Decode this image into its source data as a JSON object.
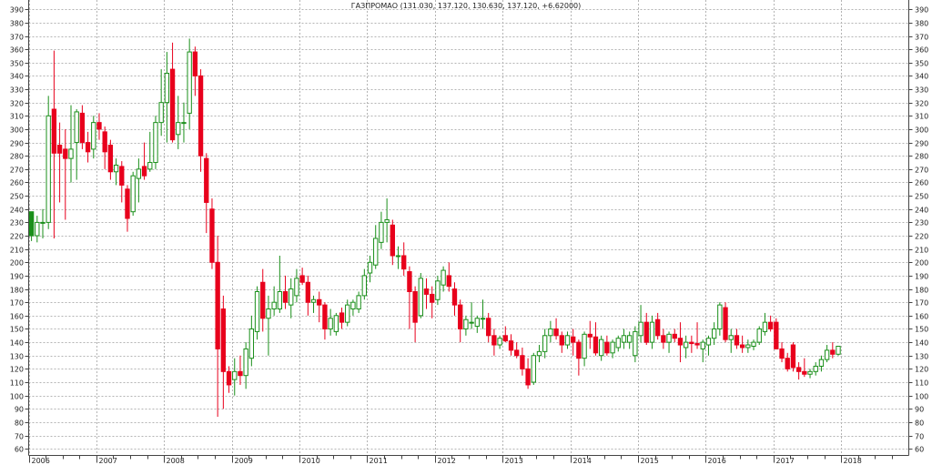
{
  "chart_data": {
    "type": "candlestick",
    "title": "ГАЗПРОМАО (131.030, 137.120, 130.630, 137.120, +6.62000)",
    "ylim": [
      55,
      397
    ],
    "xlim": [
      "2006-01",
      "2018-12"
    ],
    "yticks": [
      60,
      70,
      80,
      90,
      100,
      110,
      120,
      130,
      140,
      150,
      160,
      170,
      180,
      190,
      200,
      210,
      220,
      230,
      240,
      250,
      260,
      270,
      280,
      290,
      300,
      310,
      320,
      330,
      340,
      350,
      360,
      370,
      380,
      390
    ],
    "xticks": [
      "2006",
      "2007",
      "2008",
      "2009",
      "2010",
      "2011",
      "2012",
      "2013",
      "2014",
      "2015",
      "2016",
      "2017",
      "2018"
    ],
    "grid": true,
    "colors": {
      "up": "#1a8f1a",
      "down": "#e8001c",
      "grid": "#b4b4b4",
      "frame": "#444444"
    },
    "series": [
      {
        "t": "2006-01",
        "o": 220,
        "h": 238,
        "l": 216,
        "c": 238,
        "f": true
      },
      {
        "t": "2006-02",
        "o": 220,
        "h": 235,
        "l": 215,
        "c": 230
      },
      {
        "t": "2006-03",
        "o": 230,
        "h": 240,
        "l": 218,
        "c": 230
      },
      {
        "t": "2006-04",
        "o": 230,
        "h": 325,
        "l": 225,
        "c": 310
      },
      {
        "t": "2006-05",
        "o": 315,
        "h": 359,
        "l": 218,
        "c": 282
      },
      {
        "t": "2006-06",
        "o": 288,
        "h": 305,
        "l": 245,
        "c": 282
      },
      {
        "t": "2006-07",
        "o": 285,
        "h": 300,
        "l": 232,
        "c": 278
      },
      {
        "t": "2006-08",
        "o": 278,
        "h": 318,
        "l": 260,
        "c": 285
      },
      {
        "t": "2006-09",
        "o": 290,
        "h": 315,
        "l": 262,
        "c": 313
      },
      {
        "t": "2006-10",
        "o": 312,
        "h": 318,
        "l": 285,
        "c": 290
      },
      {
        "t": "2006-11",
        "o": 290,
        "h": 298,
        "l": 275,
        "c": 283
      },
      {
        "t": "2006-12",
        "o": 285,
        "h": 310,
        "l": 278,
        "c": 305
      },
      {
        "t": "2007-01",
        "o": 305,
        "h": 312,
        "l": 292,
        "c": 300
      },
      {
        "t": "2007-02",
        "o": 298,
        "h": 302,
        "l": 270,
        "c": 283
      },
      {
        "t": "2007-03",
        "o": 288,
        "h": 292,
        "l": 262,
        "c": 268
      },
      {
        "t": "2007-04",
        "o": 268,
        "h": 278,
        "l": 258,
        "c": 273
      },
      {
        "t": "2007-05",
        "o": 272,
        "h": 276,
        "l": 245,
        "c": 258
      },
      {
        "t": "2007-06",
        "o": 255,
        "h": 258,
        "l": 223,
        "c": 233
      },
      {
        "t": "2007-07",
        "o": 238,
        "h": 268,
        "l": 235,
        "c": 265
      },
      {
        "t": "2007-08",
        "o": 263,
        "h": 278,
        "l": 245,
        "c": 270
      },
      {
        "t": "2007-09",
        "o": 272,
        "h": 290,
        "l": 262,
        "c": 265
      },
      {
        "t": "2007-10",
        "o": 270,
        "h": 298,
        "l": 268,
        "c": 275
      },
      {
        "t": "2007-11",
        "o": 275,
        "h": 310,
        "l": 270,
        "c": 305
      },
      {
        "t": "2007-12",
        "o": 305,
        "h": 345,
        "l": 295,
        "c": 320
      },
      {
        "t": "2008-01",
        "o": 320,
        "h": 358,
        "l": 290,
        "c": 342
      },
      {
        "t": "2008-02",
        "o": 345,
        "h": 365,
        "l": 290,
        "c": 292
      },
      {
        "t": "2008-03",
        "o": 296,
        "h": 325,
        "l": 285,
        "c": 305
      },
      {
        "t": "2008-04",
        "o": 305,
        "h": 320,
        "l": 290,
        "c": 305
      },
      {
        "t": "2008-05",
        "o": 312,
        "h": 368,
        "l": 300,
        "c": 358
      },
      {
        "t": "2008-06",
        "o": 358,
        "h": 362,
        "l": 325,
        "c": 340
      },
      {
        "t": "2008-07",
        "o": 340,
        "h": 345,
        "l": 268,
        "c": 280
      },
      {
        "t": "2008-08",
        "o": 278,
        "h": 282,
        "l": 222,
        "c": 245
      },
      {
        "t": "2008-09",
        "o": 240,
        "h": 248,
        "l": 195,
        "c": 200
      },
      {
        "t": "2008-10",
        "o": 200,
        "h": 220,
        "l": 84,
        "c": 135
      },
      {
        "t": "2008-11",
        "o": 165,
        "h": 175,
        "l": 90,
        "c": 118
      },
      {
        "t": "2008-12",
        "o": 118,
        "h": 122,
        "l": 102,
        "c": 108
      },
      {
        "t": "2009-01",
        "o": 112,
        "h": 128,
        "l": 100,
        "c": 118
      },
      {
        "t": "2009-02",
        "o": 118,
        "h": 130,
        "l": 108,
        "c": 115
      },
      {
        "t": "2009-03",
        "o": 115,
        "h": 140,
        "l": 105,
        "c": 135
      },
      {
        "t": "2009-04",
        "o": 128,
        "h": 160,
        "l": 122,
        "c": 150
      },
      {
        "t": "2009-05",
        "o": 148,
        "h": 182,
        "l": 142,
        "c": 178
      },
      {
        "t": "2009-06",
        "o": 185,
        "h": 195,
        "l": 148,
        "c": 158
      },
      {
        "t": "2009-07",
        "o": 158,
        "h": 175,
        "l": 130,
        "c": 165
      },
      {
        "t": "2009-08",
        "o": 165,
        "h": 182,
        "l": 160,
        "c": 170
      },
      {
        "t": "2009-09",
        "o": 165,
        "h": 205,
        "l": 162,
        "c": 178
      },
      {
        "t": "2009-10",
        "o": 178,
        "h": 190,
        "l": 165,
        "c": 170
      },
      {
        "t": "2009-11",
        "o": 168,
        "h": 188,
        "l": 158,
        "c": 180
      },
      {
        "t": "2009-12",
        "o": 175,
        "h": 195,
        "l": 170,
        "c": 188
      },
      {
        "t": "2010-01",
        "o": 190,
        "h": 196,
        "l": 183,
        "c": 185,
        "f": true
      },
      {
        "t": "2010-02",
        "o": 185,
        "h": 190,
        "l": 160,
        "c": 170
      },
      {
        "t": "2010-03",
        "o": 170,
        "h": 175,
        "l": 162,
        "c": 172
      },
      {
        "t": "2010-04",
        "o": 172,
        "h": 178,
        "l": 155,
        "c": 168
      },
      {
        "t": "2010-05",
        "o": 168,
        "h": 170,
        "l": 142,
        "c": 150
      },
      {
        "t": "2010-06",
        "o": 150,
        "h": 165,
        "l": 145,
        "c": 158
      },
      {
        "t": "2010-07",
        "o": 148,
        "h": 162,
        "l": 145,
        "c": 160
      },
      {
        "t": "2010-08",
        "o": 162,
        "h": 166,
        "l": 150,
        "c": 155
      },
      {
        "t": "2010-09",
        "o": 155,
        "h": 172,
        "l": 152,
        "c": 168
      },
      {
        "t": "2010-10",
        "o": 165,
        "h": 172,
        "l": 160,
        "c": 170
      },
      {
        "t": "2010-11",
        "o": 165,
        "h": 178,
        "l": 162,
        "c": 175
      },
      {
        "t": "2010-12",
        "o": 175,
        "h": 195,
        "l": 172,
        "c": 190
      },
      {
        "t": "2011-01",
        "o": 192,
        "h": 205,
        "l": 185,
        "c": 200
      },
      {
        "t": "2011-02",
        "o": 198,
        "h": 228,
        "l": 195,
        "c": 218
      },
      {
        "t": "2011-03",
        "o": 215,
        "h": 238,
        "l": 210,
        "c": 230
      },
      {
        "t": "2011-04",
        "o": 230,
        "h": 248,
        "l": 215,
        "c": 232
      },
      {
        "t": "2011-05",
        "o": 228,
        "h": 232,
        "l": 198,
        "c": 205
      },
      {
        "t": "2011-06",
        "o": 205,
        "h": 212,
        "l": 195,
        "c": 205
      },
      {
        "t": "2011-07",
        "o": 205,
        "h": 215,
        "l": 190,
        "c": 195
      },
      {
        "t": "2011-08",
        "o": 193,
        "h": 197,
        "l": 150,
        "c": 178
      },
      {
        "t": "2011-09",
        "o": 178,
        "h": 182,
        "l": 140,
        "c": 155
      },
      {
        "t": "2011-10",
        "o": 160,
        "h": 192,
        "l": 158,
        "c": 188
      },
      {
        "t": "2011-11",
        "o": 180,
        "h": 188,
        "l": 165,
        "c": 176
      },
      {
        "t": "2011-12",
        "o": 176,
        "h": 182,
        "l": 158,
        "c": 170
      },
      {
        "t": "2012-01",
        "o": 172,
        "h": 190,
        "l": 168,
        "c": 186
      },
      {
        "t": "2012-02",
        "o": 183,
        "h": 197,
        "l": 178,
        "c": 194
      },
      {
        "t": "2012-03",
        "o": 190,
        "h": 200,
        "l": 178,
        "c": 182
      },
      {
        "t": "2012-04",
        "o": 180,
        "h": 185,
        "l": 160,
        "c": 168
      },
      {
        "t": "2012-05",
        "o": 168,
        "h": 172,
        "l": 140,
        "c": 150
      },
      {
        "t": "2012-06",
        "o": 150,
        "h": 160,
        "l": 145,
        "c": 157
      },
      {
        "t": "2012-07",
        "o": 155,
        "h": 170,
        "l": 150,
        "c": 155
      },
      {
        "t": "2012-08",
        "o": 152,
        "h": 160,
        "l": 147,
        "c": 158
      },
      {
        "t": "2012-09",
        "o": 158,
        "h": 172,
        "l": 150,
        "c": 158
      },
      {
        "t": "2012-10",
        "o": 158,
        "h": 162,
        "l": 140,
        "c": 145
      },
      {
        "t": "2012-11",
        "o": 145,
        "h": 150,
        "l": 130,
        "c": 138
      },
      {
        "t": "2012-12",
        "o": 138,
        "h": 145,
        "l": 135,
        "c": 143
      },
      {
        "t": "2013-01",
        "o": 145,
        "h": 152,
        "l": 140,
        "c": 141
      },
      {
        "t": "2013-02",
        "o": 141,
        "h": 146,
        "l": 130,
        "c": 134
      },
      {
        "t": "2013-03",
        "o": 134,
        "h": 140,
        "l": 128,
        "c": 130
      },
      {
        "t": "2013-04",
        "o": 130,
        "h": 136,
        "l": 115,
        "c": 120
      },
      {
        "t": "2013-05",
        "o": 120,
        "h": 128,
        "l": 105,
        "c": 108
      },
      {
        "t": "2013-06",
        "o": 110,
        "h": 132,
        "l": 108,
        "c": 130
      },
      {
        "t": "2013-07",
        "o": 130,
        "h": 138,
        "l": 125,
        "c": 133
      },
      {
        "t": "2013-08",
        "o": 133,
        "h": 150,
        "l": 128,
        "c": 145
      },
      {
        "t": "2013-09",
        "o": 145,
        "h": 156,
        "l": 140,
        "c": 150
      },
      {
        "t": "2013-10",
        "o": 150,
        "h": 158,
        "l": 142,
        "c": 145
      },
      {
        "t": "2013-11",
        "o": 145,
        "h": 148,
        "l": 132,
        "c": 138
      },
      {
        "t": "2013-12",
        "o": 138,
        "h": 148,
        "l": 135,
        "c": 145
      },
      {
        "t": "2014-01",
        "o": 144,
        "h": 150,
        "l": 130,
        "c": 140
      },
      {
        "t": "2014-02",
        "o": 140,
        "h": 142,
        "l": 115,
        "c": 128
      },
      {
        "t": "2014-03",
        "o": 128,
        "h": 148,
        "l": 122,
        "c": 146
      },
      {
        "t": "2014-04",
        "o": 146,
        "h": 156,
        "l": 135,
        "c": 144
      },
      {
        "t": "2014-05",
        "o": 144,
        "h": 155,
        "l": 130,
        "c": 132
      },
      {
        "t": "2014-06",
        "o": 130,
        "h": 145,
        "l": 126,
        "c": 142
      },
      {
        "t": "2014-07",
        "o": 140,
        "h": 145,
        "l": 130,
        "c": 132
      },
      {
        "t": "2014-08",
        "o": 132,
        "h": 142,
        "l": 128,
        "c": 140
      },
      {
        "t": "2014-09",
        "o": 136,
        "h": 145,
        "l": 133,
        "c": 143
      },
      {
        "t": "2014-10",
        "o": 140,
        "h": 150,
        "l": 135,
        "c": 145
      },
      {
        "t": "2014-11",
        "o": 140,
        "h": 148,
        "l": 135,
        "c": 145
      },
      {
        "t": "2014-12",
        "o": 130,
        "h": 152,
        "l": 125,
        "c": 148
      },
      {
        "t": "2015-01",
        "o": 145,
        "h": 168,
        "l": 140,
        "c": 155
      },
      {
        "t": "2015-02",
        "o": 155,
        "h": 162,
        "l": 138,
        "c": 140
      },
      {
        "t": "2015-03",
        "o": 140,
        "h": 160,
        "l": 135,
        "c": 155
      },
      {
        "t": "2015-04",
        "o": 157,
        "h": 162,
        "l": 142,
        "c": 145
      },
      {
        "t": "2015-05",
        "o": 145,
        "h": 150,
        "l": 135,
        "c": 140
      },
      {
        "t": "2015-06",
        "o": 140,
        "h": 148,
        "l": 132,
        "c": 146
      },
      {
        "t": "2015-07",
        "o": 146,
        "h": 150,
        "l": 140,
        "c": 143
      },
      {
        "t": "2015-08",
        "o": 143,
        "h": 155,
        "l": 125,
        "c": 138
      },
      {
        "t": "2015-09",
        "o": 136,
        "h": 145,
        "l": 128,
        "c": 140
      },
      {
        "t": "2015-10",
        "o": 140,
        "h": 145,
        "l": 132,
        "c": 139
      },
      {
        "t": "2015-11",
        "o": 139,
        "h": 155,
        "l": 135,
        "c": 138
      },
      {
        "t": "2015-12",
        "o": 135,
        "h": 142,
        "l": 125,
        "c": 140
      },
      {
        "t": "2016-01",
        "o": 138,
        "h": 145,
        "l": 130,
        "c": 143
      },
      {
        "t": "2016-02",
        "o": 143,
        "h": 155,
        "l": 138,
        "c": 150
      },
      {
        "t": "2016-03",
        "o": 150,
        "h": 170,
        "l": 145,
        "c": 168
      },
      {
        "t": "2016-04",
        "o": 166,
        "h": 170,
        "l": 140,
        "c": 142
      },
      {
        "t": "2016-05",
        "o": 142,
        "h": 150,
        "l": 132,
        "c": 145
      },
      {
        "t": "2016-06",
        "o": 145,
        "h": 150,
        "l": 135,
        "c": 138
      },
      {
        "t": "2016-07",
        "o": 138,
        "h": 145,
        "l": 132,
        "c": 136
      },
      {
        "t": "2016-08",
        "o": 136,
        "h": 142,
        "l": 132,
        "c": 138
      },
      {
        "t": "2016-09",
        "o": 137,
        "h": 142,
        "l": 134,
        "c": 140
      },
      {
        "t": "2016-10",
        "o": 140,
        "h": 152,
        "l": 138,
        "c": 150
      },
      {
        "t": "2016-11",
        "o": 148,
        "h": 162,
        "l": 145,
        "c": 155
      },
      {
        "t": "2016-12",
        "o": 155,
        "h": 160,
        "l": 148,
        "c": 150
      },
      {
        "t": "2017-01",
        "o": 155,
        "h": 158,
        "l": 135,
        "c": 135
      },
      {
        "t": "2017-02",
        "o": 135,
        "h": 140,
        "l": 125,
        "c": 128
      },
      {
        "t": "2017-03",
        "o": 128,
        "h": 132,
        "l": 118,
        "c": 120
      },
      {
        "t": "2017-04",
        "o": 138,
        "h": 140,
        "l": 118,
        "c": 121
      },
      {
        "t": "2017-05",
        "o": 121,
        "h": 125,
        "l": 112,
        "c": 118
      },
      {
        "t": "2017-06",
        "o": 118,
        "h": 128,
        "l": 114,
        "c": 116
      },
      {
        "t": "2017-07",
        "o": 116,
        "h": 120,
        "l": 113,
        "c": 118
      },
      {
        "t": "2017-08",
        "o": 118,
        "h": 125,
        "l": 115,
        "c": 122
      },
      {
        "t": "2017-09",
        "o": 122,
        "h": 130,
        "l": 118,
        "c": 127
      },
      {
        "t": "2017-10",
        "o": 127,
        "h": 138,
        "l": 125,
        "c": 134
      },
      {
        "t": "2017-11",
        "o": 134,
        "h": 140,
        "l": 128,
        "c": 131
      },
      {
        "t": "2017-12",
        "o": 131,
        "h": 137,
        "l": 130,
        "c": 137
      }
    ]
  }
}
